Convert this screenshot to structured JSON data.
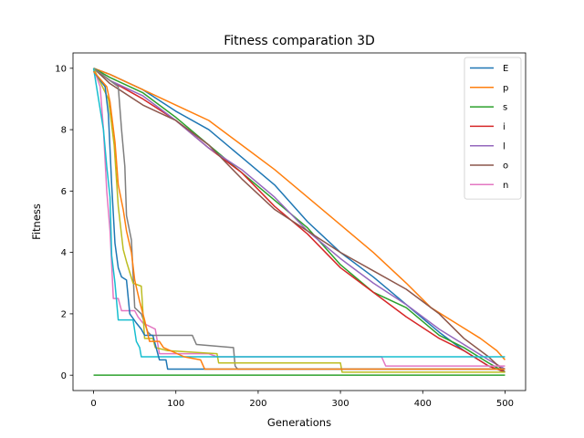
{
  "chart_data": {
    "type": "line",
    "title": "Fitness comparation 3D",
    "xlabel": "Generations",
    "ylabel": "Fitness",
    "xlim": [
      -25,
      525
    ],
    "ylim": [
      -0.5,
      10.5
    ],
    "xticks": [
      0,
      100,
      200,
      300,
      400,
      500
    ],
    "yticks": [
      0,
      2,
      4,
      6,
      8,
      10
    ],
    "grid": false,
    "legend_position": "top-right",
    "series": [
      {
        "name": "E",
        "color": "#1f77b4",
        "points": [
          [
            0,
            10
          ],
          [
            20,
            9.8
          ],
          [
            60,
            9.3
          ],
          [
            100,
            8.6
          ],
          [
            140,
            8.0
          ],
          [
            180,
            7.1
          ],
          [
            220,
            6.2
          ],
          [
            260,
            5.0
          ],
          [
            300,
            4.0
          ],
          [
            340,
            3.2
          ],
          [
            380,
            2.3
          ],
          [
            420,
            1.4
          ],
          [
            450,
            0.8
          ],
          [
            480,
            0.3
          ],
          [
            500,
            0.1
          ]
        ]
      },
      {
        "name": "p",
        "color": "#ff7f0e",
        "points": [
          [
            0,
            10
          ],
          [
            20,
            9.8
          ],
          [
            60,
            9.3
          ],
          [
            100,
            8.8
          ],
          [
            140,
            8.3
          ],
          [
            180,
            7.5
          ],
          [
            220,
            6.7
          ],
          [
            260,
            5.8
          ],
          [
            300,
            4.9
          ],
          [
            340,
            4.0
          ],
          [
            380,
            3.0
          ],
          [
            410,
            2.2
          ],
          [
            440,
            1.7
          ],
          [
            470,
            1.2
          ],
          [
            490,
            0.8
          ],
          [
            500,
            0.5
          ]
        ]
      },
      {
        "name": "s",
        "color": "#2ca02c",
        "points": [
          [
            0,
            10
          ],
          [
            20,
            9.7
          ],
          [
            60,
            9.2
          ],
          [
            100,
            8.4
          ],
          [
            140,
            7.5
          ],
          [
            180,
            6.6
          ],
          [
            220,
            5.7
          ],
          [
            260,
            4.8
          ],
          [
            300,
            3.6
          ],
          [
            340,
            2.7
          ],
          [
            380,
            2.2
          ],
          [
            420,
            1.3
          ],
          [
            450,
            0.9
          ],
          [
            480,
            0.4
          ],
          [
            500,
            0.1
          ]
        ]
      },
      {
        "name": "i",
        "color": "#d62728",
        "points": [
          [
            0,
            10
          ],
          [
            20,
            9.6
          ],
          [
            60,
            9.0
          ],
          [
            100,
            8.3
          ],
          [
            140,
            7.4
          ],
          [
            180,
            6.6
          ],
          [
            220,
            5.5
          ],
          [
            260,
            4.6
          ],
          [
            300,
            3.5
          ],
          [
            340,
            2.7
          ],
          [
            380,
            1.9
          ],
          [
            420,
            1.2
          ],
          [
            450,
            0.8
          ],
          [
            480,
            0.3
          ],
          [
            500,
            0.1
          ]
        ]
      },
      {
        "name": "l",
        "color": "#9467bd",
        "points": [
          [
            0,
            10
          ],
          [
            20,
            9.6
          ],
          [
            60,
            9.1
          ],
          [
            100,
            8.3
          ],
          [
            140,
            7.4
          ],
          [
            180,
            6.7
          ],
          [
            220,
            5.8
          ],
          [
            260,
            4.7
          ],
          [
            300,
            3.8
          ],
          [
            340,
            3.0
          ],
          [
            380,
            2.3
          ],
          [
            420,
            1.5
          ],
          [
            450,
            1.0
          ],
          [
            480,
            0.5
          ],
          [
            500,
            0.2
          ]
        ]
      },
      {
        "name": "o",
        "color": "#8c564b",
        "points": [
          [
            0,
            10
          ],
          [
            20,
            9.5
          ],
          [
            60,
            8.8
          ],
          [
            100,
            8.3
          ],
          [
            140,
            7.5
          ],
          [
            180,
            6.4
          ],
          [
            220,
            5.4
          ],
          [
            260,
            4.7
          ],
          [
            300,
            4.0
          ],
          [
            340,
            3.4
          ],
          [
            380,
            2.8
          ],
          [
            420,
            2.0
          ],
          [
            450,
            1.2
          ],
          [
            480,
            0.6
          ],
          [
            500,
            0.1
          ]
        ]
      },
      {
        "name": "n",
        "color": "#e377c2",
        "points": [
          [
            0,
            10
          ],
          [
            8,
            9.4
          ],
          [
            12,
            8.0
          ],
          [
            16,
            6.0
          ],
          [
            20,
            4.7
          ],
          [
            24,
            2.5
          ],
          [
            30,
            2.5
          ],
          [
            34,
            2.1
          ],
          [
            50,
            2.1
          ],
          [
            54,
            1.9
          ],
          [
            60,
            1.7
          ],
          [
            75,
            1.5
          ],
          [
            80,
            0.7
          ],
          [
            140,
            0.7
          ],
          [
            150,
            0.6
          ],
          [
            350,
            0.6
          ],
          [
            355,
            0.3
          ],
          [
            500,
            0.3
          ]
        ]
      },
      {
        "name": "",
        "color": "#7f7f7f",
        "points": [
          [
            0,
            10
          ],
          [
            20,
            9.6
          ],
          [
            30,
            9.4
          ],
          [
            34,
            8.0
          ],
          [
            38,
            6.8
          ],
          [
            40,
            5.2
          ],
          [
            46,
            4.4
          ],
          [
            50,
            2.2
          ],
          [
            58,
            2.0
          ],
          [
            62,
            1.7
          ],
          [
            66,
            1.4
          ],
          [
            70,
            1.3
          ],
          [
            120,
            1.3
          ],
          [
            125,
            1.0
          ],
          [
            170,
            0.9
          ],
          [
            172,
            0.3
          ],
          [
            175,
            0.2
          ],
          [
            500,
            0.2
          ]
        ]
      },
      {
        "name": "",
        "color": "#bcbd22",
        "points": [
          [
            0,
            10
          ],
          [
            18,
            9.0
          ],
          [
            25,
            7.5
          ],
          [
            30,
            5.5
          ],
          [
            36,
            4.1
          ],
          [
            40,
            3.7
          ],
          [
            48,
            3.0
          ],
          [
            58,
            2.9
          ],
          [
            62,
            1.2
          ],
          [
            72,
            1.2
          ],
          [
            75,
            0.9
          ],
          [
            90,
            0.8
          ],
          [
            150,
            0.7
          ],
          [
            152,
            0.4
          ],
          [
            300,
            0.4
          ],
          [
            302,
            0.1
          ],
          [
            500,
            0.1
          ]
        ]
      },
      {
        "name": "",
        "color": "#17becf",
        "points": [
          [
            0,
            10
          ],
          [
            12,
            8.0
          ],
          [
            16,
            6.8
          ],
          [
            20,
            5.8
          ],
          [
            22,
            3.9
          ],
          [
            26,
            3.0
          ],
          [
            30,
            1.8
          ],
          [
            48,
            1.8
          ],
          [
            52,
            1.1
          ],
          [
            56,
            0.9
          ],
          [
            58,
            0.6
          ],
          [
            500,
            0.6
          ]
        ]
      },
      {
        "name": "",
        "color": "#1f77b4",
        "points": [
          [
            0,
            9.9
          ],
          [
            14,
            9.4
          ],
          [
            18,
            8.5
          ],
          [
            22,
            6.2
          ],
          [
            26,
            4.3
          ],
          [
            30,
            3.5
          ],
          [
            34,
            3.2
          ],
          [
            40,
            3.1
          ],
          [
            44,
            2.0
          ],
          [
            52,
            1.7
          ],
          [
            58,
            1.5
          ],
          [
            62,
            1.3
          ],
          [
            72,
            1.3
          ],
          [
            80,
            0.5
          ],
          [
            88,
            0.5
          ],
          [
            90,
            0.2
          ],
          [
            500,
            0.2
          ]
        ]
      },
      {
        "name": "",
        "color": "#ff7f0e",
        "points": [
          [
            0,
            9.9
          ],
          [
            16,
            9.4
          ],
          [
            20,
            8.9
          ],
          [
            26,
            7.6
          ],
          [
            30,
            6.2
          ],
          [
            36,
            5.4
          ],
          [
            40,
            4.7
          ],
          [
            46,
            4.0
          ],
          [
            50,
            3.1
          ],
          [
            56,
            2.4
          ],
          [
            62,
            1.8
          ],
          [
            68,
            1.1
          ],
          [
            80,
            1.1
          ],
          [
            85,
            0.9
          ],
          [
            110,
            0.6
          ],
          [
            130,
            0.5
          ],
          [
            135,
            0.2
          ],
          [
            500,
            0.2
          ]
        ]
      },
      {
        "name": "",
        "color": "#2ca02c",
        "points": [
          [
            0,
            0
          ],
          [
            500,
            0
          ]
        ]
      }
    ]
  }
}
